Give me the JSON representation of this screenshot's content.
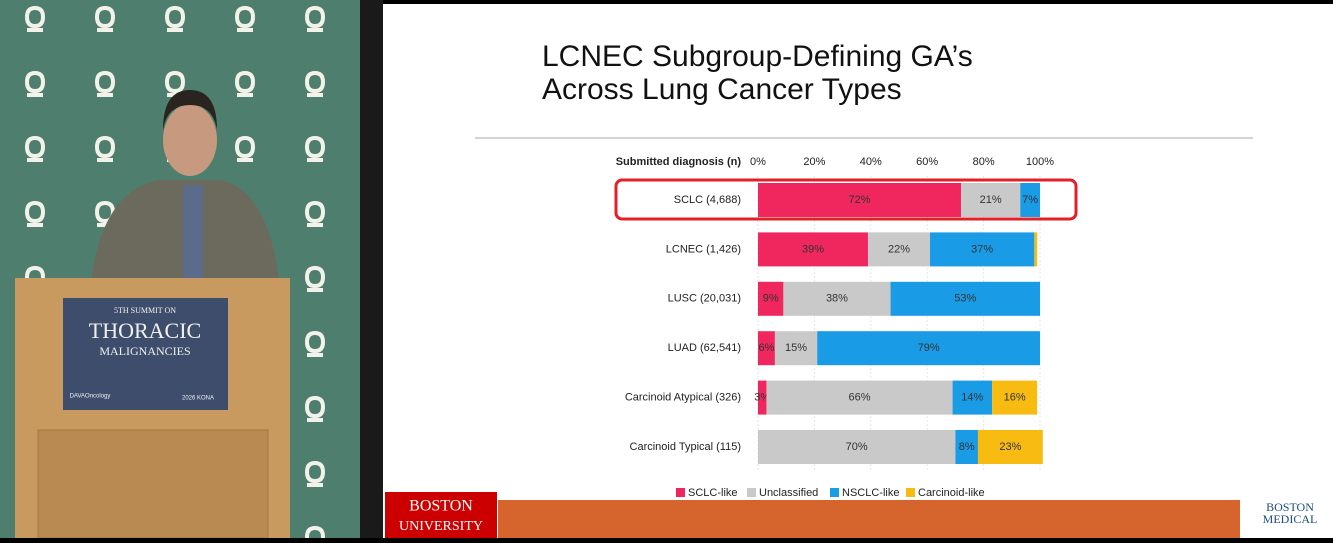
{
  "chart_data": {
    "type": "stacked-barh",
    "title": [
      "LCNEC Subgroup-Defining GA’s",
      "Across Lung Cancer Types"
    ],
    "category_header": "Submitted diagnosis (n)",
    "categories": [
      "SCLC (4,688)",
      "LCNEC (1,426)",
      "LUSC (20,031)",
      "LUAD (62,541)",
      "Carcinoid Atypical (326)",
      "Carcinoid Typical (115)"
    ],
    "series": [
      {
        "name": "SCLC-like",
        "color": "#f0275f",
        "values": [
          72,
          39,
          9,
          6,
          3,
          0
        ],
        "value_labels": [
          "72%",
          "39%",
          "9%",
          "6%",
          "3%",
          null
        ]
      },
      {
        "name": "Unclassified",
        "color": "#c9c9c9",
        "values": [
          21,
          22,
          38,
          15,
          66,
          70
        ],
        "value_labels": [
          "21%",
          "22%",
          "38%",
          "15%",
          "66%",
          "70%"
        ]
      },
      {
        "name": "NSCLC-like",
        "color": "#1a9be6",
        "values": [
          7,
          37,
          53,
          79,
          14,
          8
        ],
        "value_labels": [
          "7%",
          "37%",
          "53%",
          "79%",
          "14%",
          "8%"
        ]
      },
      {
        "name": "Carcinoid-like",
        "color": "#f7bb12",
        "values": [
          0,
          1,
          0,
          0,
          16,
          23
        ],
        "value_labels": [
          null,
          null,
          null,
          null,
          "16%",
          "23%"
        ]
      }
    ],
    "xlim": [
      0,
      100
    ],
    "xticks": [
      {
        "value": 0,
        "label": "0%"
      },
      {
        "value": 20,
        "label": "20%"
      },
      {
        "value": 40,
        "label": "40%"
      },
      {
        "value": 60,
        "label": "60%"
      },
      {
        "value": 80,
        "label": "80%"
      },
      {
        "value": 100,
        "label": "100%"
      }
    ],
    "grid": true
  },
  "podium": {
    "line1": "5TH SUMMIT ON",
    "line2": "THORACIC",
    "line3": "MALIGNANCIES",
    "sponsor": "DAVAOncology",
    "event": "2026 KONA"
  },
  "footer": {
    "left_logo": [
      "BOSTON",
      "UNIVERSITY"
    ],
    "right_logo": [
      "BOSTON",
      "MEDICAL"
    ]
  }
}
